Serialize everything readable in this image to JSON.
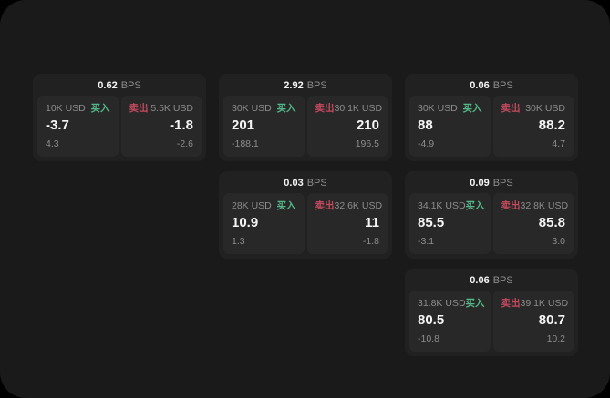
{
  "labels": {
    "bps_unit": "BPS",
    "buy": "买入",
    "sell": "卖出"
  },
  "colors": {
    "page_bg": "#000000",
    "screen_bg": "#1a1a1a",
    "card_bg": "#212121",
    "panel_bg": "#282828",
    "text_primary": "#f5f5f5",
    "text_muted": "#8d8d8d",
    "buy_accent": "#54b787",
    "sell_accent": "#c44a5e"
  },
  "cards": [
    {
      "bps": "0.62",
      "buy": {
        "size": "10K USD",
        "price": "-3.7",
        "delta": "4.3"
      },
      "sell": {
        "size": "5.5K USD",
        "price": "-1.8",
        "delta": "-2.6"
      }
    },
    {
      "bps": "2.92",
      "buy": {
        "size": "30K USD",
        "price": "201",
        "delta": "-188.1"
      },
      "sell": {
        "size": "30.1K USD",
        "price": "210",
        "delta": "196.5"
      }
    },
    {
      "bps": "0.06",
      "buy": {
        "size": "30K USD",
        "price": "88",
        "delta": "-4.9"
      },
      "sell": {
        "size": "30K USD",
        "price": "88.2",
        "delta": "4.7"
      }
    },
    {
      "bps": "0.03",
      "buy": {
        "size": "28K USD",
        "price": "10.9",
        "delta": "1.3"
      },
      "sell": {
        "size": "32.6K USD",
        "price": "11",
        "delta": "-1.8"
      }
    },
    {
      "bps": "0.09",
      "buy": {
        "size": "34.1K USD",
        "price": "85.5",
        "delta": "-3.1"
      },
      "sell": {
        "size": "32.8K USD",
        "price": "85.8",
        "delta": "3.0"
      }
    },
    {
      "bps": "0.06",
      "buy": {
        "size": "31.8K USD",
        "price": "80.5",
        "delta": "-10.8"
      },
      "sell": {
        "size": "39.1K USD",
        "price": "80.7",
        "delta": "10.2"
      }
    }
  ]
}
